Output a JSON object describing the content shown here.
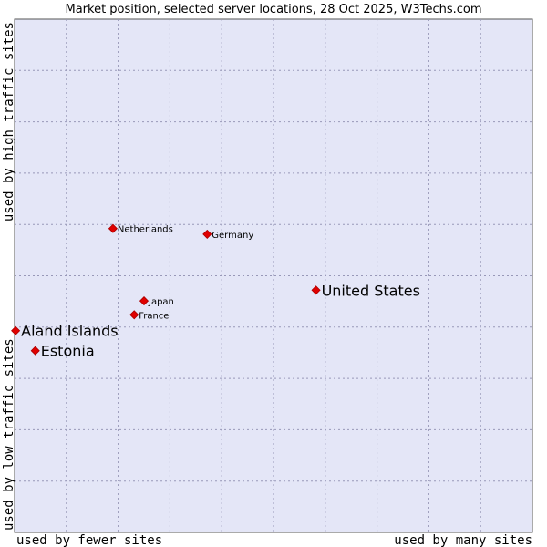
{
  "chart_data": {
    "type": "scatter",
    "title": "Market position, selected server locations, 28 Oct 2025, W3Techs.com",
    "xlabel_left": "used by fewer sites",
    "xlabel_right": "used by many sites",
    "ylabel_bottom": "used by low traffic sites",
    "ylabel_top": "used by high traffic sites",
    "xlim": [
      0,
      100
    ],
    "ylim": [
      0,
      100
    ],
    "grid": true,
    "colors": {
      "plot_background": "#e4e6f7",
      "grid": "#9898b8",
      "point": "#e00000"
    },
    "points": [
      {
        "name": "Netherlands",
        "x": 19.0,
        "y": 59.2,
        "emphasis": false
      },
      {
        "name": "Germany",
        "x": 37.2,
        "y": 58.1,
        "emphasis": false
      },
      {
        "name": "United States",
        "x": 58.2,
        "y": 47.2,
        "emphasis": true
      },
      {
        "name": "Japan",
        "x": 25.0,
        "y": 45.1,
        "emphasis": false
      },
      {
        "name": "France",
        "x": 23.1,
        "y": 42.4,
        "emphasis": false
      },
      {
        "name": "Aland Islands",
        "x": 0.2,
        "y": 39.3,
        "emphasis": true
      },
      {
        "name": "Estonia",
        "x": 4.0,
        "y": 35.4,
        "emphasis": true
      }
    ]
  }
}
